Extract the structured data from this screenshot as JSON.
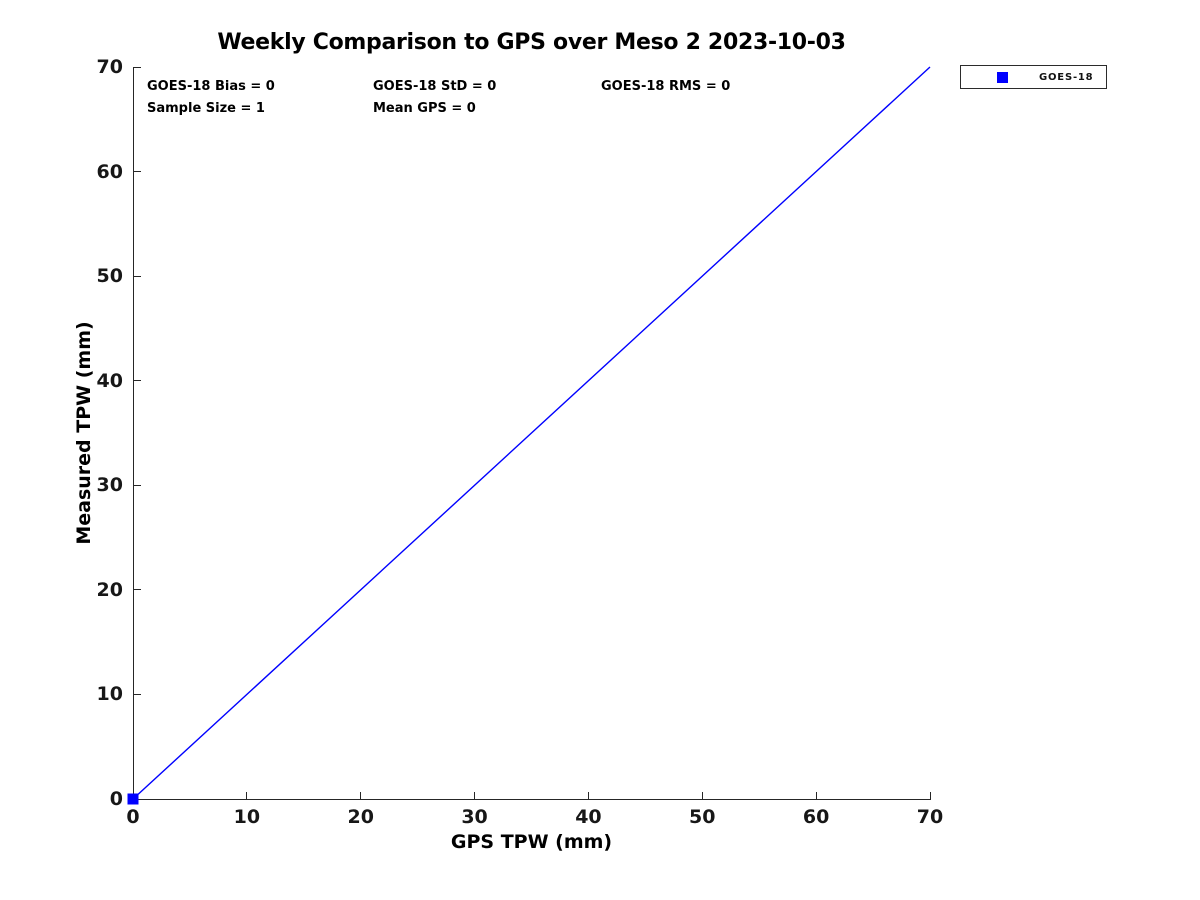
{
  "chart_data": {
    "type": "scatter",
    "title": "Weekly Comparison to GPS over Meso 2 2023-10-03",
    "xlabel": "GPS TPW (mm)",
    "ylabel": "Measured TPW (mm)",
    "xlim": [
      0,
      70
    ],
    "ylim": [
      0,
      70
    ],
    "xticks": [
      0,
      10,
      20,
      30,
      40,
      50,
      60,
      70
    ],
    "yticks": [
      0,
      10,
      20,
      30,
      40,
      50,
      60,
      70
    ],
    "grid": false,
    "background": "#ffffff",
    "axis_color": "#262626",
    "series": [
      {
        "name": "GOES-18",
        "marker": "square",
        "color": "#0000ff",
        "points": [
          [
            0,
            0
          ]
        ]
      }
    ],
    "reference_line": {
      "name": "identity-line",
      "color": "#0000ff",
      "from": [
        0,
        0
      ],
      "to": [
        70,
        70
      ]
    },
    "legend": {
      "position": "outside-top-right",
      "entries": [
        {
          "label": "GOES-18",
          "marker": "square",
          "color": "#0000ff"
        }
      ]
    },
    "annotations": [
      {
        "text": "GOES-18 Bias = 0"
      },
      {
        "text": "GOES-18 StD = 0"
      },
      {
        "text": "GOES-18 RMS = 0"
      },
      {
        "text": "Sample Size = 1"
      },
      {
        "text": "Mean GPS = 0"
      }
    ],
    "stats": {
      "bias": 0,
      "std": 0,
      "rms": 0,
      "sample_size": 1,
      "mean_gps": 0
    }
  }
}
